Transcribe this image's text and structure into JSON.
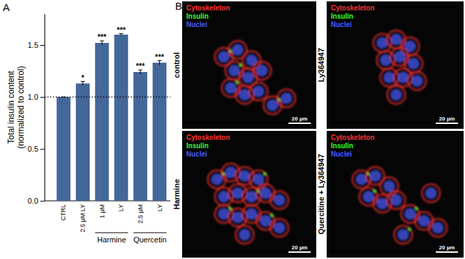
{
  "chart_data": {
    "type": "bar",
    "panel_label": "A",
    "y_label": [
      "Total insulin content",
      "(normalized to control)"
    ],
    "categories": [
      "CTRL",
      "2.5 µM LY",
      "1 µM",
      "LY",
      "2.5 µM",
      "LY"
    ],
    "values": [
      1.0,
      1.13,
      1.52,
      1.6,
      1.24,
      1.33
    ],
    "errors": [
      0.0,
      0.02,
      0.02,
      0.01,
      0.02,
      0.02
    ],
    "significance": [
      null,
      "*",
      "***",
      "***",
      "***",
      "***"
    ],
    "groups": [
      {
        "label": "Harmine",
        "start": 2,
        "end": 3
      },
      {
        "label": "Quercetin",
        "start": 4,
        "end": 5
      }
    ],
    "reference_line": 1.0,
    "color": "#44679a",
    "ylim": [
      0,
      1.8
    ],
    "yticks": [
      {
        "value": 0,
        "label": "0.0"
      },
      {
        "value": 0.5,
        "label": "0.5"
      },
      {
        "value": 1,
        "label": "1.0"
      },
      {
        "value": 1.5,
        "label": "1.5"
      }
    ]
  },
  "image_panel": {
    "panel_label": "B",
    "channels": [
      {
        "name": "Cytoskeleton",
        "color": "#ff3030"
      },
      {
        "name": "Insulin",
        "color": "#30ff30"
      },
      {
        "name": "Nuclei",
        "color": "#4a5cff"
      }
    ],
    "scale_bar": "20 µm",
    "images": [
      {
        "label": "control"
      },
      {
        "label": "Ly364947"
      },
      {
        "label": "Harmine"
      },
      {
        "label": "Quercitine + Ly364947"
      }
    ]
  }
}
